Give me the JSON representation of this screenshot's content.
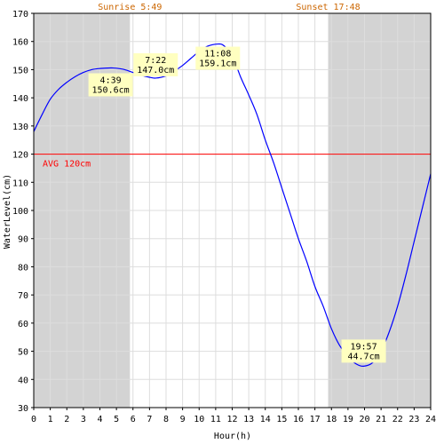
{
  "chart_data": {
    "type": "line",
    "xlabel": "Hour(h)",
    "ylabel": "WaterLevel(cm)",
    "xlim": [
      0,
      24
    ],
    "ylim": [
      30,
      170
    ],
    "x_ticks": [
      0,
      1,
      2,
      3,
      4,
      5,
      6,
      7,
      8,
      9,
      10,
      11,
      12,
      13,
      14,
      15,
      16,
      17,
      18,
      19,
      20,
      21,
      22,
      23,
      24
    ],
    "y_ticks": [
      30,
      40,
      50,
      60,
      70,
      80,
      90,
      100,
      110,
      120,
      130,
      140,
      150,
      160,
      170
    ],
    "grid": true,
    "colors": {
      "line": "#0000ff",
      "avg": "#ff0000",
      "night": "#d3d3d3",
      "grid": "#dddddd",
      "annotation_bg": "#ffffc0",
      "sun": "#cc6600"
    },
    "sunrise": {
      "label": "Sunrise 5:49",
      "hour": 5.817
    },
    "sunset": {
      "label": "Sunset 17:48",
      "hour": 17.8
    },
    "average": {
      "value": 120,
      "label": "AVG 120cm"
    },
    "series": [
      {
        "x": [
          0,
          0.5,
          1,
          1.5,
          2,
          2.5,
          3,
          3.5,
          4,
          4.65,
          5,
          5.5,
          6,
          6.5,
          7,
          7.37,
          8,
          8.5,
          9,
          9.5,
          10,
          10.5,
          11.13,
          11.5,
          12,
          12.5,
          13,
          13.5,
          14,
          14.5,
          15,
          15.5,
          16,
          16.5,
          17,
          17.5,
          18,
          18.5,
          19,
          19.5,
          19.95,
          20.5,
          21,
          21.5,
          22,
          22.5,
          23,
          23.5,
          24
        ],
        "y": [
          128,
          134,
          139.5,
          143,
          145.5,
          147.5,
          149,
          150,
          150.4,
          150.6,
          150.5,
          150,
          149,
          148,
          147.3,
          147.0,
          147.8,
          149.5,
          151.5,
          154,
          156.5,
          158.3,
          159.1,
          158.5,
          155,
          147.5,
          141,
          134,
          125,
          117,
          108,
          99,
          90,
          82,
          73,
          66,
          58,
          52,
          48,
          45.5,
          44.7,
          46,
          50,
          57,
          66,
          77,
          89,
          101,
          113
        ]
      }
    ],
    "annotations": [
      {
        "time": "4:39",
        "value": "150.6cm",
        "x": 4.65,
        "y": 150.6
      },
      {
        "time": "7:22",
        "value": "147.0cm",
        "x": 7.37,
        "y": 147.0
      },
      {
        "time": "11:08",
        "value": "159.1cm",
        "x": 11.13,
        "y": 159.1
      },
      {
        "time": "19:57",
        "value": "44.7cm",
        "x": 19.95,
        "y": 44.7
      }
    ]
  }
}
